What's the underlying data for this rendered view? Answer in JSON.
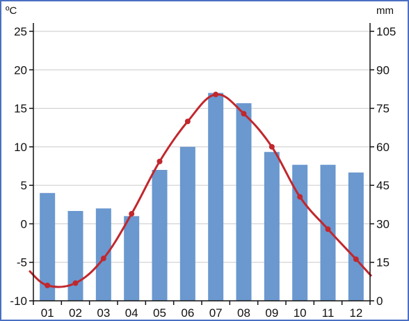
{
  "chart_data": {
    "type": "bar+line",
    "categories": [
      "01",
      "02",
      "03",
      "04",
      "05",
      "06",
      "07",
      "08",
      "09",
      "10",
      "11",
      "12"
    ],
    "series": [
      {
        "kind": "bar",
        "axis": "right",
        "color": "#6a98cf",
        "values": [
          42,
          35,
          36,
          33,
          51,
          60,
          81,
          77,
          58,
          53,
          53,
          50
        ]
      },
      {
        "kind": "line",
        "axis": "left",
        "color": "#c1272d",
        "values": [
          -8,
          -7.7,
          -4.5,
          1.3,
          8.1,
          13.3,
          16.8,
          14.3,
          10,
          3.5,
          -0.7,
          -4.6
        ],
        "edge_values": {
          "start": -6.1,
          "end": -6.8
        }
      }
    ],
    "left_axis": {
      "unit": "ºC",
      "ticks": [
        "25",
        "20",
        "15",
        "10",
        "5",
        "0",
        "-5",
        "-10"
      ],
      "range": [
        -10,
        25
      ]
    },
    "right_axis": {
      "unit": "mm",
      "ticks": [
        "105",
        "90",
        "75",
        "60",
        "45",
        "30",
        "15",
        "0"
      ],
      "range": [
        0,
        105
      ]
    },
    "grid": true
  }
}
